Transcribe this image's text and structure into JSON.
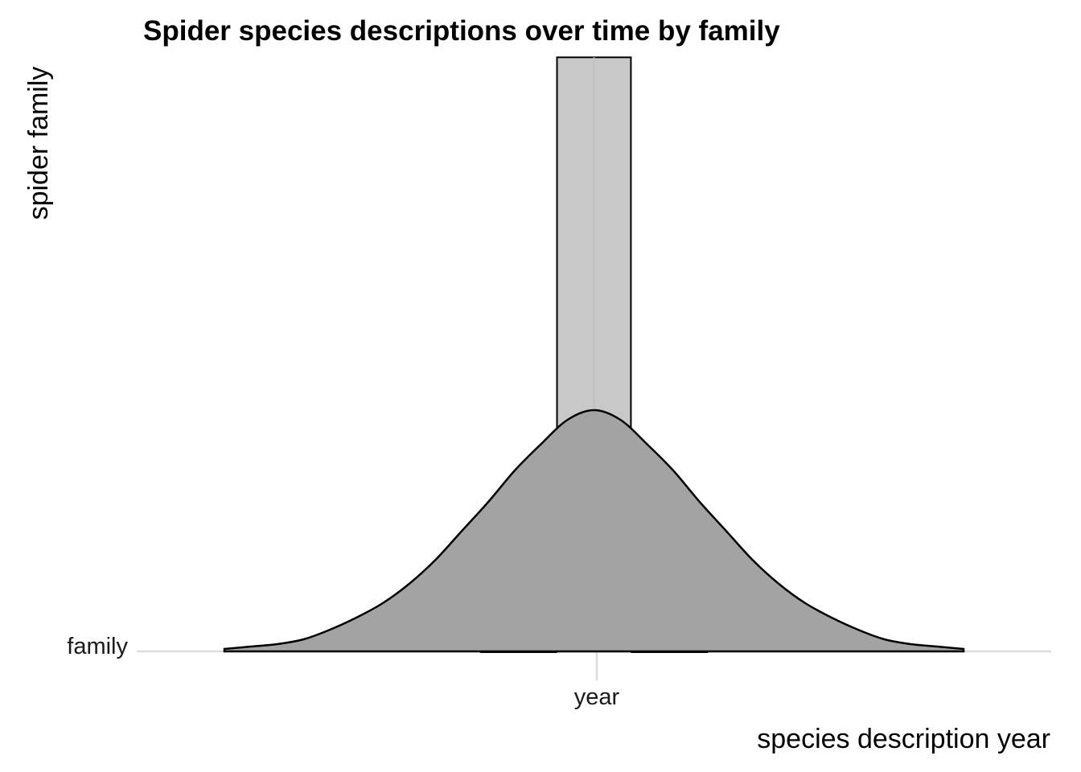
{
  "chart_data": {
    "type": "ridgeline",
    "title": "Spider species descriptions over time by family",
    "xlabel": "species description year",
    "ylabel": "spider family",
    "x_tick_labels": [
      "year"
    ],
    "y_tick_labels": [
      "family"
    ],
    "grid": true,
    "series": [
      {
        "category": "family",
        "density_curve": {
          "x": [
            -3.5,
            -3.25,
            -3.0,
            -2.75,
            -2.5,
            -2.25,
            -2.0,
            -1.75,
            -1.5,
            -1.25,
            -1.0,
            -0.75,
            -0.5,
            -0.25,
            0.0,
            0.25,
            0.5,
            0.75,
            1.0,
            1.25,
            1.5,
            1.75,
            2.0,
            2.25,
            2.5,
            2.75,
            3.0,
            3.25,
            3.5
          ],
          "y": [
            0.01,
            0.02,
            0.03,
            0.05,
            0.09,
            0.14,
            0.2,
            0.28,
            0.38,
            0.5,
            0.62,
            0.75,
            0.86,
            0.96,
            1.0,
            0.96,
            0.86,
            0.75,
            0.62,
            0.5,
            0.38,
            0.28,
            0.2,
            0.14,
            0.09,
            0.05,
            0.03,
            0.02,
            0.01
          ]
        },
        "box": {
          "whisker_low": -1.08,
          "q1": -0.35,
          "median": 0.0,
          "q3": 0.35,
          "whisker_high": 1.08,
          "height_relative_to_peak": 2.5
        }
      }
    ],
    "x_range": [
      -4.33,
      4.33
    ],
    "colors": {
      "density_fill": "#a3a3a3",
      "box_fill": "#c8c8c8",
      "outline": "#000000",
      "grid": "#dcdcdc",
      "background": "#ffffff"
    }
  }
}
